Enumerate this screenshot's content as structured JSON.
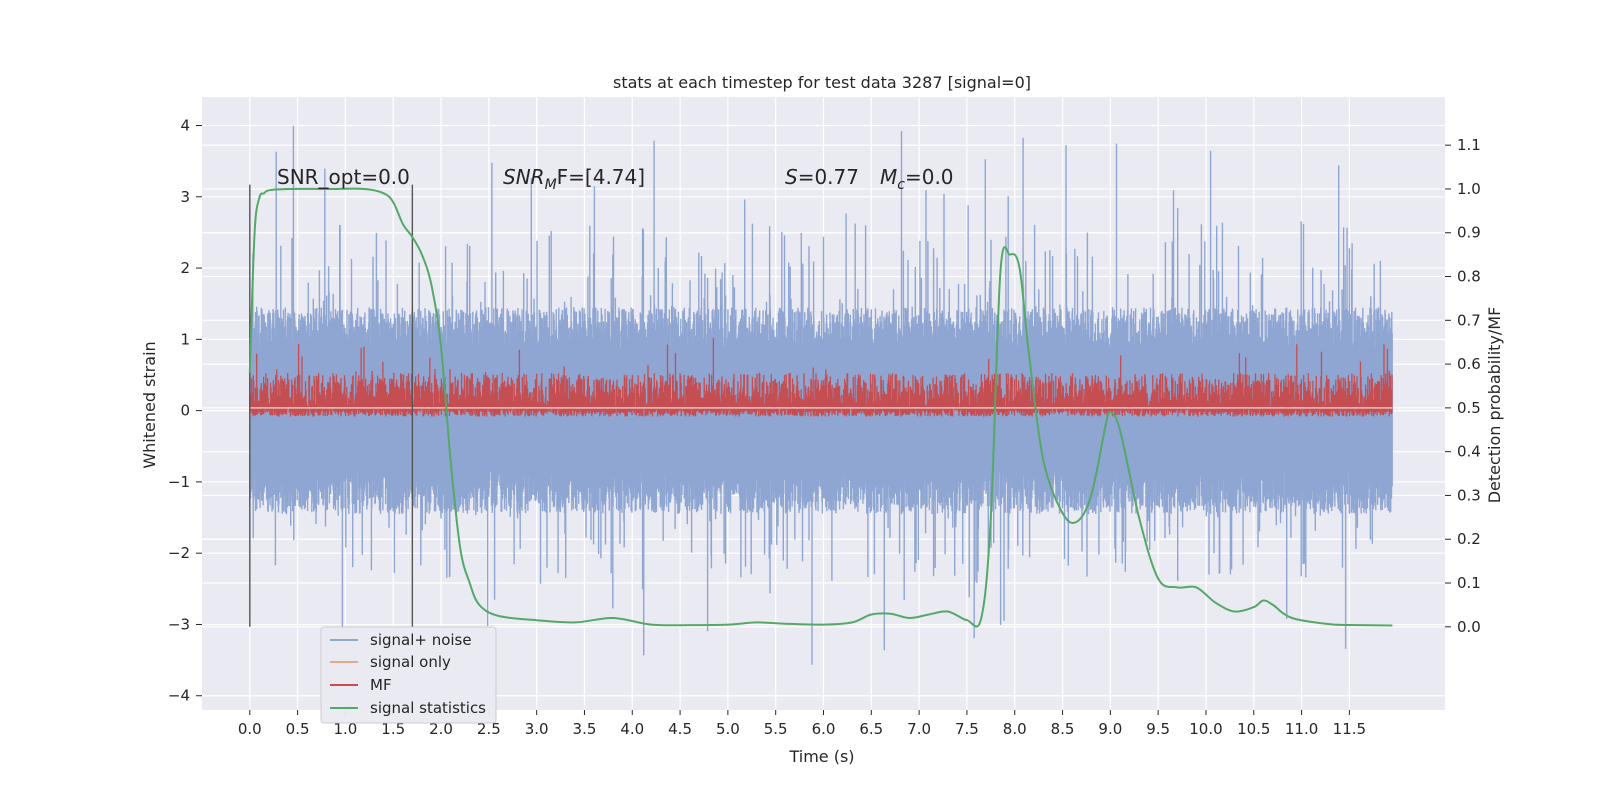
{
  "chart_data": {
    "type": "line",
    "title": "stats at each timestep for test data 3287 [signal=0]",
    "xlabel": "Time (s)",
    "ylabel_left": "Whitened strain",
    "ylabel_right": "Detection probability/MF",
    "xlim": [
      -0.5,
      12.5
    ],
    "ylim_left": [
      -4.2,
      4.4
    ],
    "ylim_right": [
      -0.19,
      1.21
    ],
    "x_ticks": [
      "0.0",
      "0.5",
      "1.0",
      "1.5",
      "2.0",
      "2.5",
      "3.0",
      "3.5",
      "4.0",
      "4.5",
      "5.0",
      "5.5",
      "6.0",
      "6.5",
      "7.0",
      "7.5",
      "8.0",
      "8.5",
      "9.0",
      "9.5",
      "10.0",
      "10.5",
      "11.0",
      "11.5"
    ],
    "y_left_ticks": [
      "4",
      "3",
      "2",
      "1",
      "0",
      "−1",
      "−2",
      "−3",
      "−4"
    ],
    "y_right_ticks": [
      "1.1",
      "1.0",
      "0.9",
      "0.8",
      "0.7",
      "0.6",
      "0.5",
      "0.4",
      "0.3",
      "0.2",
      "0.1",
      "0.0"
    ],
    "grid": true,
    "legend_placement": "lower-left",
    "annotations": {
      "snr_opt": "SNR_opt=0.0",
      "snr_mf_name": "SNR",
      "snr_mf_sub": "M",
      "snr_mf_after": "F=[4.74]",
      "s_name": "S",
      "s_value": "=0.77",
      "mc_name": "M",
      "mc_sub": "c",
      "mc_value": "=0.0"
    },
    "vertical_markers": [
      0.0,
      1.7
    ],
    "series": [
      {
        "name": "signal+ noise",
        "axis": "left",
        "color": "#8fa6d2",
        "envelope": {
          "x_start": 0.0,
          "x_end": 11.95,
          "typical_low": -1.45,
          "typical_high": 1.45,
          "peak_low": -3.6,
          "peak_high": 4.1
        }
      },
      {
        "name": "signal only",
        "axis": "left",
        "color": "#dd8452",
        "values_note_free": true,
        "x": [
          0.0,
          11.95
        ],
        "y": [
          0.0,
          0.0
        ]
      },
      {
        "name": "MF",
        "axis": "right",
        "color": "#c44e52",
        "envelope": {
          "x_start": 0.0,
          "x_end": 11.95,
          "baseline": 0.5,
          "typical_high": 0.58,
          "peak_high": 0.66
        }
      },
      {
        "name": "signal statistics",
        "axis": "right",
        "color": "#55a868",
        "x": [
          0.0,
          0.05,
          0.1,
          0.15,
          0.2,
          0.4,
          0.8,
          1.2,
          1.4,
          1.5,
          1.6,
          1.7,
          1.8,
          1.9,
          2.0,
          2.1,
          2.2,
          2.3,
          2.4,
          2.6,
          3.0,
          3.4,
          3.8,
          4.2,
          4.6,
          5.0,
          5.3,
          5.6,
          6.0,
          6.3,
          6.5,
          6.7,
          6.9,
          7.1,
          7.3,
          7.5,
          7.65,
          7.75,
          7.85,
          7.95,
          8.05,
          8.15,
          8.3,
          8.5,
          8.65,
          8.8,
          8.95,
          9.0,
          9.1,
          9.3,
          9.5,
          9.7,
          9.9,
          10.1,
          10.3,
          10.5,
          10.6,
          10.7,
          10.9,
          11.3,
          11.6,
          11.95
        ],
        "y": [
          0.58,
          0.9,
          0.98,
          0.99,
          0.997,
          1.0,
          1.0,
          1.0,
          0.99,
          0.97,
          0.92,
          0.89,
          0.85,
          0.78,
          0.64,
          0.38,
          0.18,
          0.1,
          0.05,
          0.025,
          0.015,
          0.01,
          0.02,
          0.005,
          0.004,
          0.005,
          0.01,
          0.007,
          0.005,
          0.01,
          0.028,
          0.03,
          0.02,
          0.028,
          0.035,
          0.015,
          0.02,
          0.25,
          0.81,
          0.85,
          0.82,
          0.62,
          0.38,
          0.26,
          0.24,
          0.3,
          0.46,
          0.49,
          0.45,
          0.25,
          0.11,
          0.09,
          0.09,
          0.055,
          0.035,
          0.045,
          0.06,
          0.05,
          0.02,
          0.006,
          0.004,
          0.003
        ]
      }
    ]
  }
}
